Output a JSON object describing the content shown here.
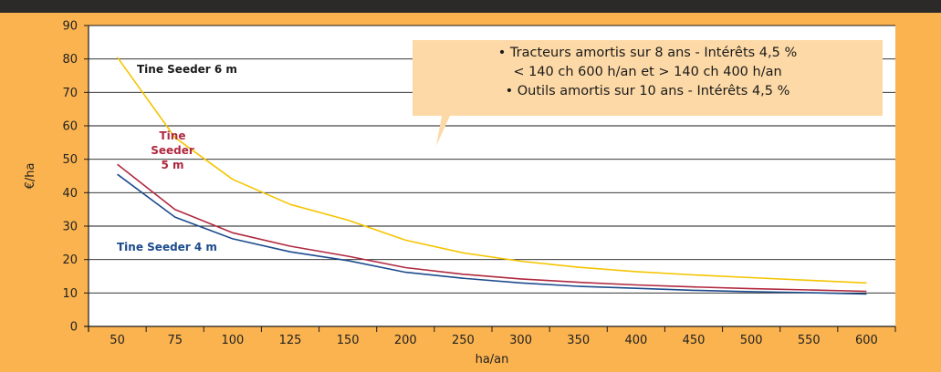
{
  "colors": {
    "background": "#FBB34F",
    "plot_background": "#FFFFFF",
    "top_bar": "#2B2A29",
    "callout": "#FCD9A6",
    "tine_6m": "#F5C400",
    "tine_5m": "#B0283F",
    "tine_4m": "#1C4B8C"
  },
  "callout": {
    "lines": [
      "• Tracteurs amortis sur 8 ans - Intérêts 4,5 %",
      "< 140 ch 600 h/an et > 140 ch 400 h/an",
      "• Outils amortis sur 10 ans - Intérêts 4,5 %"
    ]
  },
  "chart_data": {
    "type": "line",
    "xlabel": "ha/an",
    "ylabel": "€/ha",
    "categories": [
      "50",
      "75",
      "100",
      "125",
      "150",
      "200",
      "250",
      "300",
      "350",
      "400",
      "450",
      "500",
      "550",
      "600"
    ],
    "ylim": [
      0,
      90
    ],
    "yticks": [
      0,
      10,
      20,
      30,
      40,
      50,
      60,
      70,
      80,
      90
    ],
    "grid": true,
    "series": [
      {
        "name": "Tine Seeder 6 m",
        "label_lines": [
          "Tine Seeder  6 m"
        ],
        "color": "#F5C400",
        "values": [
          80.5,
          56.5,
          44,
          36.5,
          31.8,
          25.8,
          22,
          19.5,
          17.7,
          16.4,
          15.4,
          14.6,
          13.8,
          13
        ]
      },
      {
        "name": "Tine Seeder 5 m",
        "label_lines": [
          "Tine",
          "Seeder",
          "5 m"
        ],
        "color": "#B0283F",
        "values": [
          48.5,
          35,
          28,
          24,
          21,
          17.6,
          15.6,
          14.2,
          13.2,
          12.4,
          11.8,
          11.3,
          10.9,
          10.5
        ]
      },
      {
        "name": "Tine Seeder 4 m",
        "label_lines": [
          "Tine Seeder  4 m"
        ],
        "color": "#1C4B8C",
        "values": [
          45.5,
          32.7,
          26.2,
          22.3,
          19.7,
          16.2,
          14.4,
          13,
          12,
          11.4,
          10.8,
          10.4,
          10.1,
          9.7
        ]
      }
    ]
  }
}
